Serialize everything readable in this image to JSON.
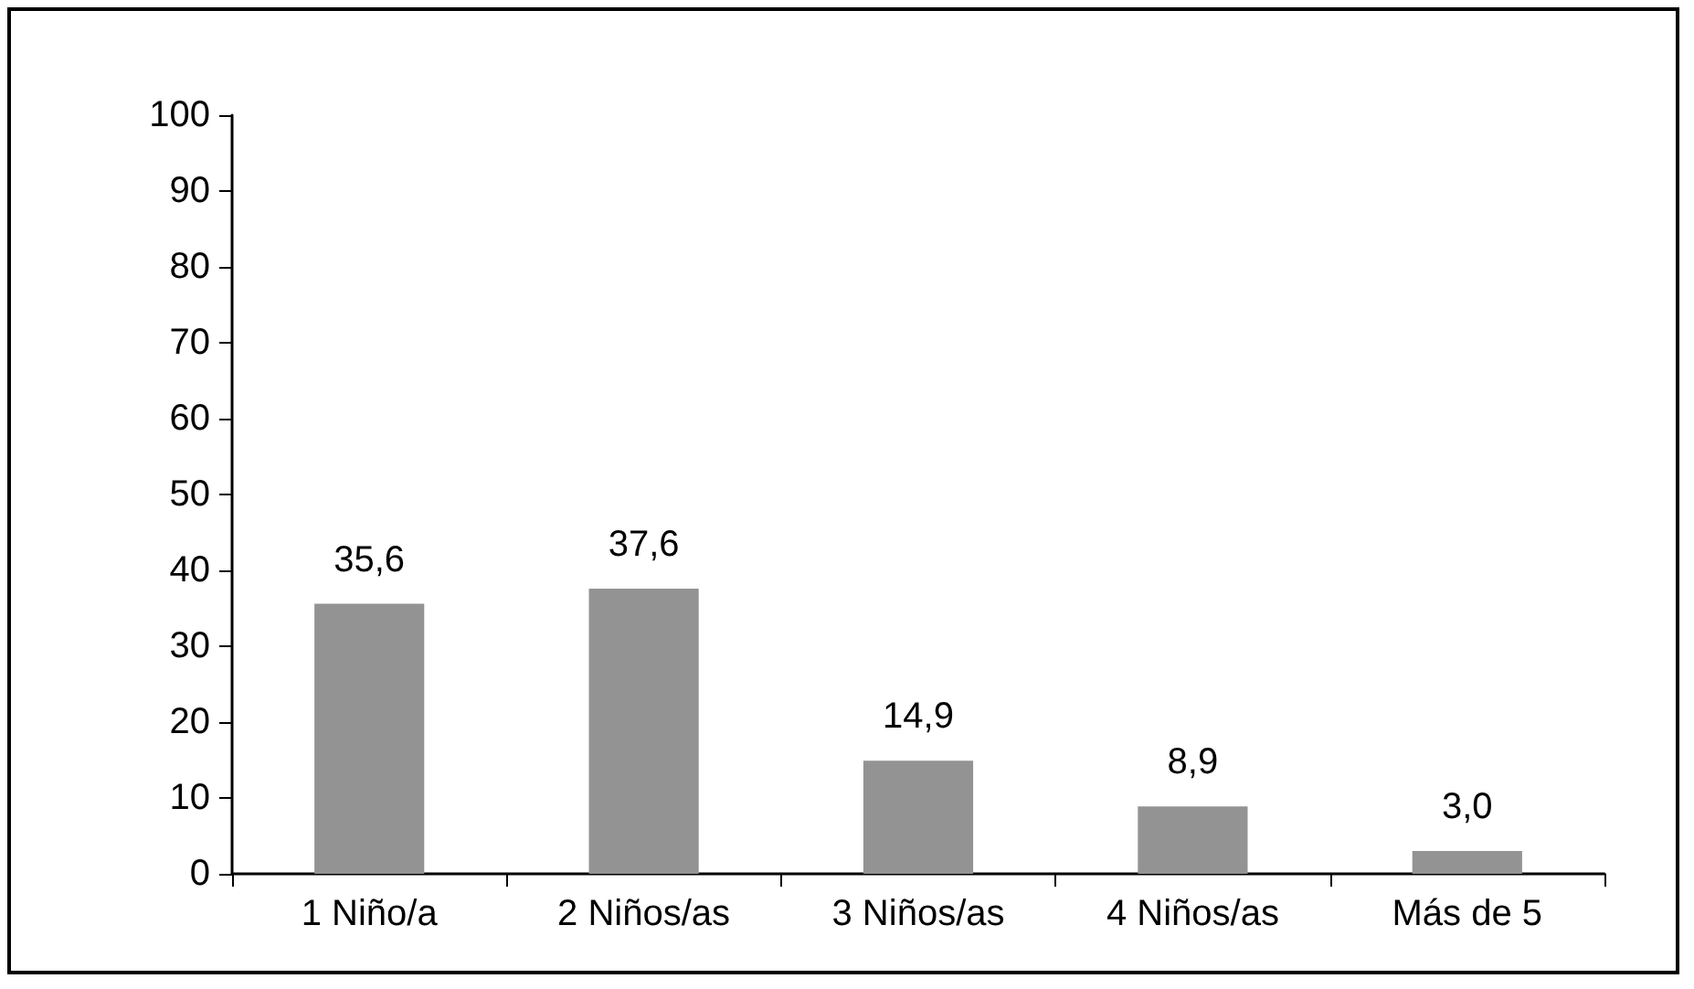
{
  "chart_data": {
    "type": "bar",
    "categories": [
      "1 Niño/a",
      "2 Niños/as",
      "3 Niños/as",
      "4 Niños/as",
      "Más de 5"
    ],
    "values": [
      35.6,
      37.6,
      14.9,
      8.9,
      3.0
    ],
    "value_labels": [
      "35,6",
      "37,6",
      "14,9",
      "8,9",
      "3,0"
    ],
    "color": "#939393",
    "ylim": [
      0,
      100
    ],
    "yticks": [
      0,
      10,
      20,
      30,
      40,
      50,
      60,
      70,
      80,
      90,
      100
    ],
    "grid": false
  }
}
